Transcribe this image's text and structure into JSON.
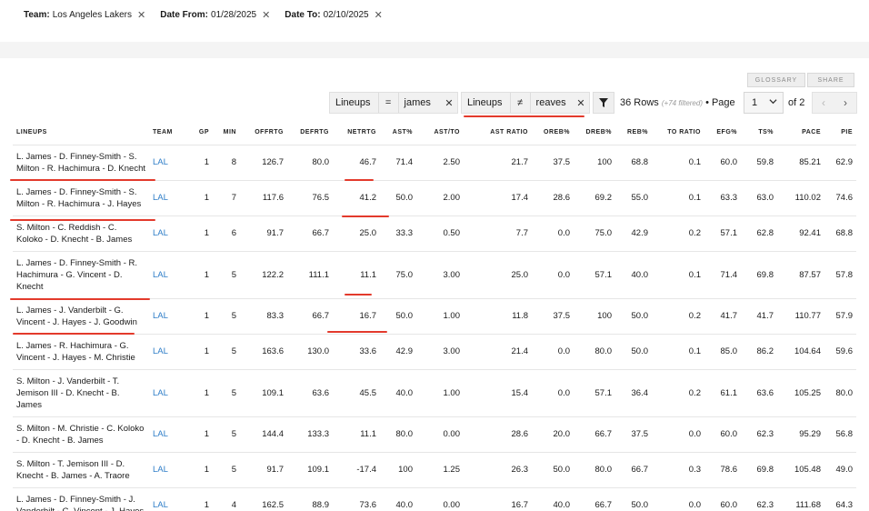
{
  "filters": [
    {
      "key": "Team:",
      "value": "Los Angeles Lakers"
    },
    {
      "key": "Date From:",
      "value": "01/28/2025"
    },
    {
      "key": "Date To:",
      "value": "02/10/2025"
    }
  ],
  "buttons": {
    "glossary": "GLOSSARY",
    "share": "SHARE"
  },
  "toolbar": {
    "filter1": {
      "field": "Lineups",
      "op": "=",
      "value": "james"
    },
    "filter2": {
      "field": "Lineups",
      "op": "≠",
      "value": "reaves"
    },
    "rows": "36 Rows",
    "filtered": "(+74 filtered)",
    "page_label": "• Page",
    "page": "1",
    "of": "of 2"
  },
  "columns": [
    "LINEUPS",
    "TEAM",
    "GP",
    "MIN",
    "OFFRTG",
    "DEFRTG",
    "NETRTG",
    "AST%",
    "AST/TO",
    "AST RATIO",
    "OREB%",
    "DREB%",
    "REB%",
    "TO RATIO",
    "EFG%",
    "TS%",
    "PACE",
    "PIE"
  ],
  "rows": [
    {
      "lineup": "L. James - D. Finney-Smith - S. Milton - R. Hachimura - D. Knecht",
      "team": "LAL",
      "gp": "1",
      "min": "8",
      "offrtg": "126.7",
      "defrtg": "80.0",
      "netrtg": "46.7",
      "astp": "71.4",
      "astto": "2.50",
      "astratio": "21.7",
      "orebp": "37.5",
      "drebp": "100",
      "rebp": "68.8",
      "toratio": "0.1",
      "efg": "60.0",
      "ts": "59.8",
      "pace": "85.21",
      "pie": "62.9"
    },
    {
      "lineup": "L. James - D. Finney-Smith - S. Milton - R. Hachimura - J. Hayes",
      "team": "LAL",
      "gp": "1",
      "min": "7",
      "offrtg": "117.6",
      "defrtg": "76.5",
      "netrtg": "41.2",
      "astp": "50.0",
      "astto": "2.00",
      "astratio": "17.4",
      "orebp": "28.6",
      "drebp": "69.2",
      "rebp": "55.0",
      "toratio": "0.1",
      "efg": "63.3",
      "ts": "63.0",
      "pace": "110.02",
      "pie": "74.6"
    },
    {
      "lineup": "S. Milton - C. Reddish - C. Koloko - D. Knecht - B. James",
      "team": "LAL",
      "gp": "1",
      "min": "6",
      "offrtg": "91.7",
      "defrtg": "66.7",
      "netrtg": "25.0",
      "astp": "33.3",
      "astto": "0.50",
      "astratio": "7.7",
      "orebp": "0.0",
      "drebp": "75.0",
      "rebp": "42.9",
      "toratio": "0.2",
      "efg": "57.1",
      "ts": "62.8",
      "pace": "92.41",
      "pie": "68.8"
    },
    {
      "lineup": "L. James - D. Finney-Smith - R. Hachimura - G. Vincent - D. Knecht",
      "team": "LAL",
      "gp": "1",
      "min": "5",
      "offrtg": "122.2",
      "defrtg": "111.1",
      "netrtg": "11.1",
      "astp": "75.0",
      "astto": "3.00",
      "astratio": "25.0",
      "orebp": "0.0",
      "drebp": "57.1",
      "rebp": "40.0",
      "toratio": "0.1",
      "efg": "71.4",
      "ts": "69.8",
      "pace": "87.57",
      "pie": "57.8"
    },
    {
      "lineup": "L. James - J. Vanderbilt - G. Vincent - J. Hayes - J. Goodwin",
      "team": "LAL",
      "gp": "1",
      "min": "5",
      "offrtg": "83.3",
      "defrtg": "66.7",
      "netrtg": "16.7",
      "astp": "50.0",
      "astto": "1.00",
      "astratio": "11.8",
      "orebp": "37.5",
      "drebp": "100",
      "rebp": "50.0",
      "toratio": "0.2",
      "efg": "41.7",
      "ts": "41.7",
      "pace": "110.77",
      "pie": "57.9"
    },
    {
      "lineup": "L. James - R. Hachimura - G. Vincent - J. Hayes - M. Christie",
      "team": "LAL",
      "gp": "1",
      "min": "5",
      "offrtg": "163.6",
      "defrtg": "130.0",
      "netrtg": "33.6",
      "astp": "42.9",
      "astto": "3.00",
      "astratio": "21.4",
      "orebp": "0.0",
      "drebp": "80.0",
      "rebp": "50.0",
      "toratio": "0.1",
      "efg": "85.0",
      "ts": "86.2",
      "pace": "104.64",
      "pie": "59.6"
    },
    {
      "lineup": "S. Milton - J. Vanderbilt - T. Jemison III - D. Knecht - B. James",
      "team": "LAL",
      "gp": "1",
      "min": "5",
      "offrtg": "109.1",
      "defrtg": "63.6",
      "netrtg": "45.5",
      "astp": "40.0",
      "astto": "1.00",
      "astratio": "15.4",
      "orebp": "0.0",
      "drebp": "57.1",
      "rebp": "36.4",
      "toratio": "0.2",
      "efg": "61.1",
      "ts": "63.6",
      "pace": "105.25",
      "pie": "80.0"
    },
    {
      "lineup": "S. Milton - M. Christie - C. Koloko - D. Knecht - B. James",
      "team": "LAL",
      "gp": "1",
      "min": "5",
      "offrtg": "144.4",
      "defrtg": "133.3",
      "netrtg": "11.1",
      "astp": "80.0",
      "astto": "0.00",
      "astratio": "28.6",
      "orebp": "20.0",
      "drebp": "66.7",
      "rebp": "37.5",
      "toratio": "0.0",
      "efg": "60.0",
      "ts": "62.3",
      "pace": "95.29",
      "pie": "56.8"
    },
    {
      "lineup": "S. Milton - T. Jemison III - D. Knecht - B. James - A. Traore",
      "team": "LAL",
      "gp": "1",
      "min": "5",
      "offrtg": "91.7",
      "defrtg": "109.1",
      "netrtg": "-17.4",
      "astp": "100",
      "astto": "1.25",
      "astratio": "26.3",
      "orebp": "50.0",
      "drebp": "80.0",
      "rebp": "66.7",
      "toratio": "0.3",
      "efg": "78.6",
      "ts": "69.8",
      "pace": "105.48",
      "pie": "49.0"
    },
    {
      "lineup": "L. James - D. Finney-Smith - J. Vanderbilt - G. Vincent - J. Hayes",
      "team": "LAL",
      "gp": "1",
      "min": "4",
      "offrtg": "162.5",
      "defrtg": "88.9",
      "netrtg": "73.6",
      "astp": "40.0",
      "astto": "0.00",
      "astratio": "16.7",
      "orebp": "40.0",
      "drebp": "66.7",
      "rebp": "50.0",
      "toratio": "0.0",
      "efg": "60.0",
      "ts": "62.3",
      "pace": "111.68",
      "pie": "64.3"
    }
  ],
  "colors": {
    "link": "#2f7ec8",
    "annotation": "#e33a2c"
  }
}
